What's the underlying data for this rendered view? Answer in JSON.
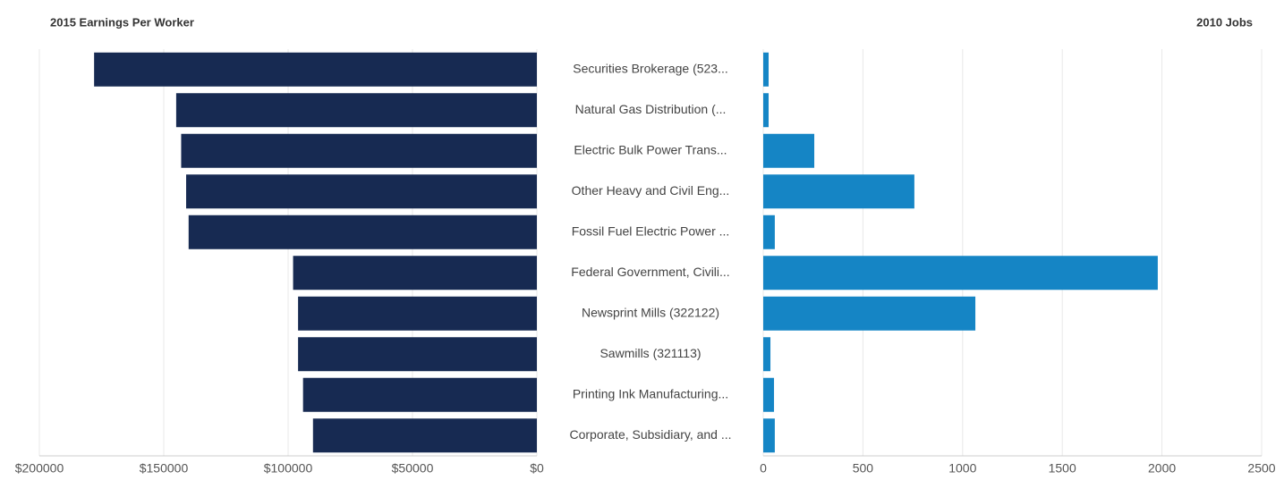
{
  "chart_data": [
    {
      "type": "barh",
      "title": "2015 Earnings Per Worker",
      "categories": [
        "Securities Brokerage  (523...",
        "Natural Gas Distribution  (...",
        "Electric Bulk Power Trans...",
        "Other Heavy and Civil Eng...",
        "Fossil Fuel Electric Power ...",
        "Federal Government, Civili...",
        "Newsprint Mills  (322122)",
        "Sawmills  (321113)",
        "Printing Ink Manufacturing...",
        "Corporate, Subsidiary, and ..."
      ],
      "values": [
        178000,
        145000,
        143000,
        141000,
        140000,
        98000,
        96000,
        96000,
        94000,
        90000
      ],
      "color": "#172a52",
      "xlim": [
        200000,
        0
      ],
      "xticks": [
        {
          "value": 200000,
          "label": "$200000"
        },
        {
          "value": 150000,
          "label": "$150000"
        },
        {
          "value": 100000,
          "label": "$100000"
        },
        {
          "value": 50000,
          "label": "$50000"
        },
        {
          "value": 0,
          "label": "$0"
        }
      ],
      "grid": true
    },
    {
      "type": "barh",
      "title": "2010 Jobs",
      "values": [
        27,
        27,
        256,
        758,
        58,
        1979,
        1064,
        36,
        54,
        58
      ],
      "color": "#1585c5",
      "xlim": [
        0,
        2500
      ],
      "xticks": [
        0,
        500,
        1000,
        1500,
        2000,
        2500
      ],
      "grid": true
    }
  ]
}
